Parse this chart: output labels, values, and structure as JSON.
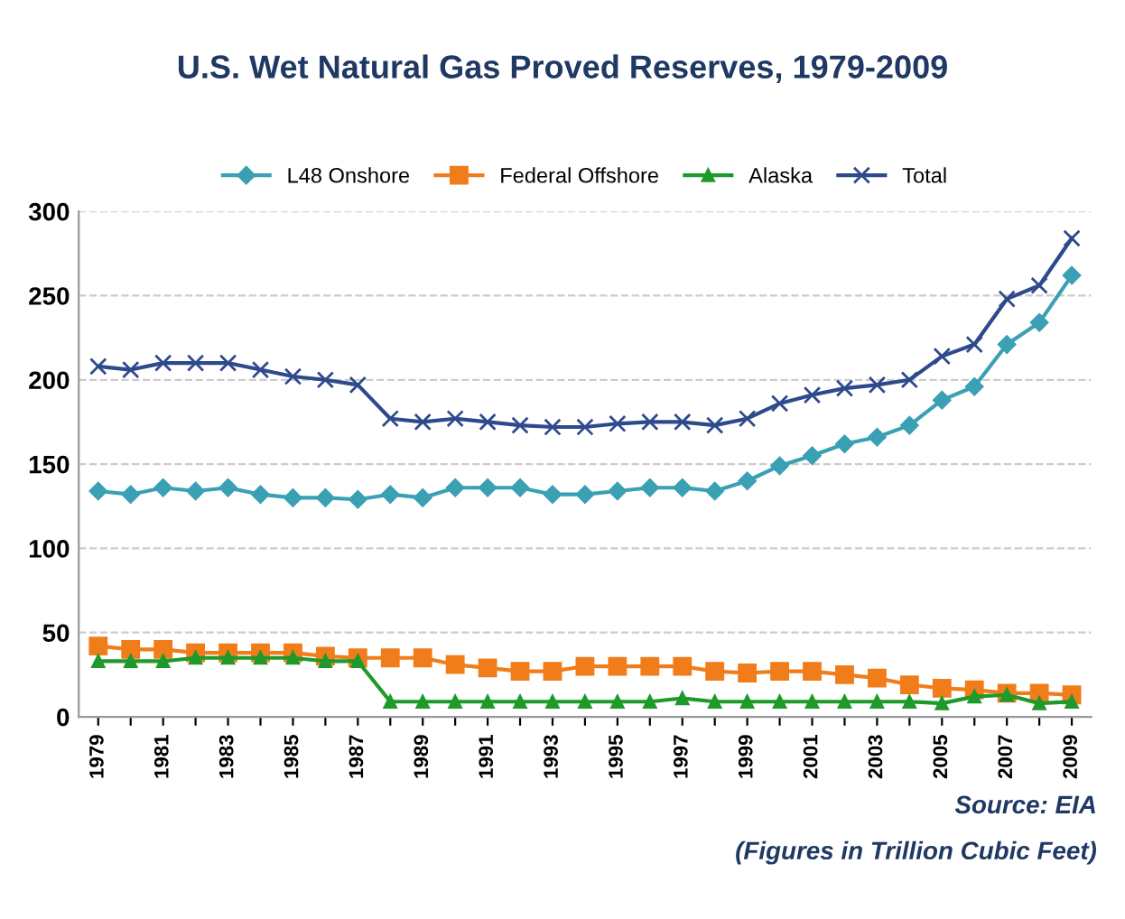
{
  "chart_data": {
    "type": "line",
    "title": "U.S. Wet Natural Gas Proved Reserves, 1979-2009",
    "categories": [
      "1979",
      null,
      "1981",
      null,
      "1983",
      null,
      "1985",
      null,
      "1987",
      null,
      "1989",
      null,
      "1991",
      null,
      "1993",
      null,
      "1995",
      null,
      "1997",
      null,
      "1999",
      null,
      "2001",
      null,
      "2003",
      null,
      "2005",
      null,
      "2007",
      null,
      "2009"
    ],
    "series": [
      {
        "name": "L48 Onshore",
        "color": "#3aa0b4",
        "marker": "diamond",
        "values": [
          134,
          132,
          136,
          134,
          136,
          132,
          130,
          130,
          129,
          132,
          130,
          136,
          136,
          136,
          132,
          132,
          134,
          136,
          136,
          134,
          140,
          149,
          155,
          162,
          166,
          173,
          188,
          196,
          221,
          234,
          262
        ]
      },
      {
        "name": "Federal Offshore",
        "color": "#f07d1a",
        "marker": "square",
        "values": [
          42,
          40,
          40,
          38,
          38,
          38,
          38,
          36,
          35,
          35,
          35,
          31,
          29,
          27,
          27,
          30,
          30,
          30,
          30,
          27,
          26,
          27,
          27,
          25,
          23,
          19,
          17,
          16,
          14,
          14,
          13
        ]
      },
      {
        "name": "Alaska",
        "color": "#1e9a2a",
        "marker": "triangle",
        "values": [
          33,
          33,
          33,
          35,
          35,
          35,
          35,
          33,
          33,
          9,
          9,
          9,
          9,
          9,
          9,
          9,
          9,
          9,
          11,
          9,
          9,
          9,
          9,
          9,
          9,
          9,
          8,
          12,
          13,
          8,
          9
        ]
      },
      {
        "name": "Total",
        "color": "#2e4a8c",
        "marker": "cross",
        "values": [
          208,
          206,
          210,
          210,
          210,
          206,
          202,
          200,
          197,
          177,
          175,
          177,
          175,
          173,
          172,
          172,
          174,
          175,
          175,
          173,
          177,
          186,
          191,
          195,
          197,
          200,
          214,
          221,
          248,
          256,
          284
        ]
      }
    ],
    "ylim": [
      0,
      300
    ],
    "yticks": [
      0,
      50,
      100,
      150,
      200,
      250,
      300
    ],
    "grid": "y",
    "legend": "top",
    "annotations": [
      "Source: EIA",
      "(Figures in Trillion Cubic Feet)"
    ]
  }
}
